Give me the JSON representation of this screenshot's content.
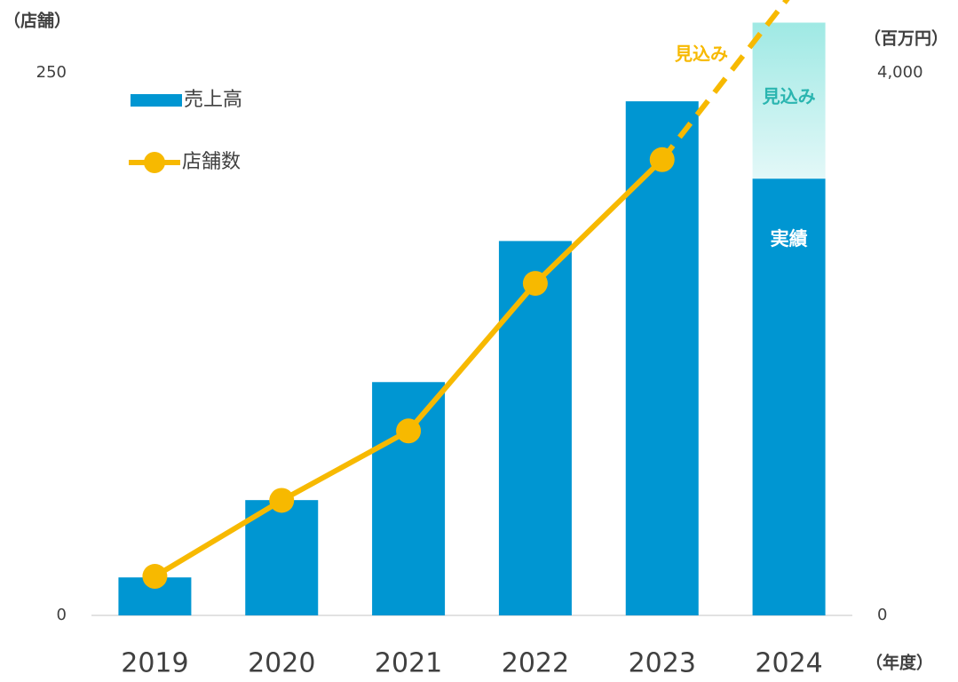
{
  "chart_data": {
    "type": "bar_line",
    "y_label": "（店舗）",
    "y2_label": "（百万円）",
    "x_label": "（年度）",
    "categories": [
      "2019",
      "2020",
      "2021",
      "2022",
      "2023",
      "2024"
    ],
    "series": [
      {
        "name": "売上高",
        "color": "#0096d2",
        "type": "bar",
        "axis": "y2",
        "values": [
          280,
          850,
          1720,
          2760,
          3790,
          3220
        ]
      },
      {
        "name": "店舗数",
        "color": "#f7b900",
        "type": "line",
        "axis": "y",
        "values": [
          18,
          53,
          85,
          153,
          210,
          null
        ]
      }
    ],
    "bar_actual_label": "実績",
    "bar_forecast": {
      "label": "見込み",
      "color": "#a8ece8",
      "values": [
        null,
        null,
        null,
        null,
        null,
        1150
      ]
    },
    "line_forecast": {
      "label": "見込み",
      "values": [
        null,
        null,
        null,
        null,
        210,
        285
      ]
    },
    "ylim": [
      0,
      250
    ],
    "yticks": [
      0,
      250
    ],
    "y2lim": [
      0,
      4000
    ],
    "y2ticks": [
      0,
      {
        "value": 4000,
        "label": "4,000"
      }
    ],
    "legend": "upper left"
  }
}
